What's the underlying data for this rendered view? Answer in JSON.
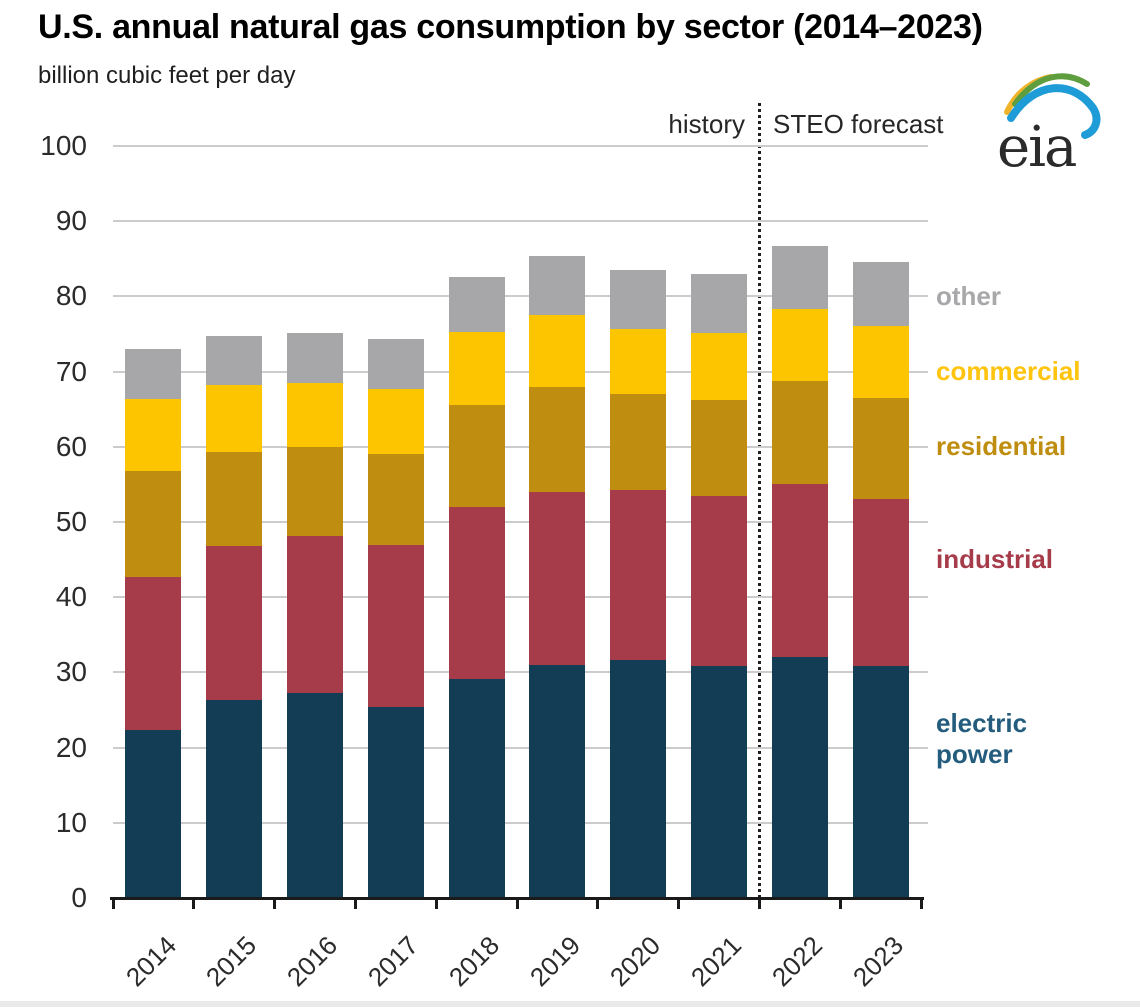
{
  "header": {
    "title": "U.S. annual natural gas consumption by sector (2014–2023)",
    "subtitle": "billion cubic feet per day",
    "logo_text": "eia"
  },
  "annotations": {
    "history_label": "history",
    "forecast_label": "STEO forecast"
  },
  "colors": {
    "gridline": "#cccccc",
    "axis": "#1a1a1a",
    "divider": "#1f1f1f",
    "tick_label": "#2b2b2b"
  },
  "chart_data": {
    "type": "bar",
    "stacked": true,
    "title": "U.S. annual natural gas consumption by sector (2014–2023)",
    "ylabel": "billion cubic feet per day",
    "ylim": [
      0,
      100
    ],
    "ytick_step": 10,
    "grid": "horizontal",
    "legend_position": "right",
    "categories": [
      "2014",
      "2015",
      "2016",
      "2017",
      "2018",
      "2019",
      "2020",
      "2021",
      "2022",
      "2023"
    ],
    "forecast_start_index": 8,
    "series": [
      {
        "name": "electric power",
        "color": "#133d55",
        "values": [
          22.3,
          26.3,
          27.3,
          25.4,
          29.1,
          31.0,
          31.7,
          30.8,
          32.0,
          30.9
        ]
      },
      {
        "name": "industrial",
        "color": "#a63b4a",
        "values": [
          20.4,
          20.5,
          20.8,
          21.5,
          22.9,
          23.0,
          22.6,
          22.6,
          23.1,
          22.2
        ]
      },
      {
        "name": "residential",
        "color": "#bf8e10",
        "values": [
          14.1,
          12.5,
          11.9,
          12.1,
          13.6,
          13.9,
          12.7,
          12.8,
          13.6,
          13.4
        ]
      },
      {
        "name": "commercial",
        "color": "#fdc500",
        "values": [
          9.6,
          8.9,
          8.5,
          8.7,
          9.6,
          9.6,
          8.7,
          8.9,
          9.6,
          9.5
        ]
      },
      {
        "name": "other",
        "color": "#a7a7a9",
        "values": [
          6.6,
          6.5,
          6.6,
          6.7,
          7.4,
          7.9,
          7.8,
          7.9,
          8.4,
          8.6
        ]
      }
    ],
    "legend": [
      {
        "label": "other",
        "lines": [
          "other"
        ],
        "color": "#a8a8aa",
        "anchor_value": 80
      },
      {
        "label": "commercial",
        "lines": [
          "commercial"
        ],
        "color": "#ffc40d",
        "anchor_value": 70
      },
      {
        "label": "residential",
        "lines": [
          "residential"
        ],
        "color": "#bf8e10",
        "anchor_value": 60
      },
      {
        "label": "industrial",
        "lines": [
          "industrial"
        ],
        "color": "#a63b4a",
        "anchor_value": 45
      },
      {
        "label": "electric power",
        "lines": [
          "electric",
          "power"
        ],
        "color": "#245c7d",
        "anchor_value": 21.2
      }
    ]
  }
}
